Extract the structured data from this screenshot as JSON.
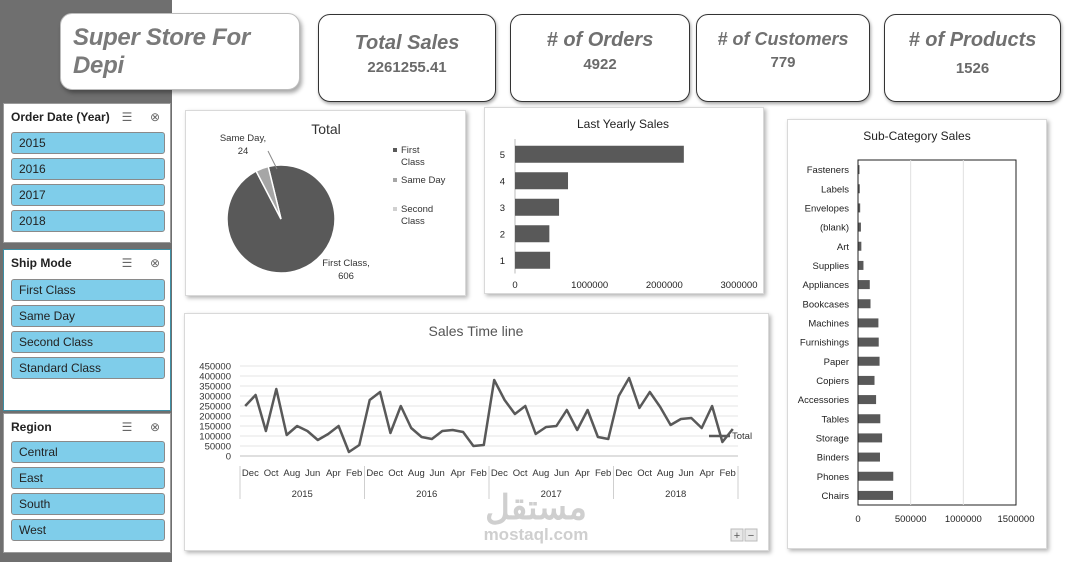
{
  "header": {
    "title": "Super Store For Depi"
  },
  "kpis": {
    "total_sales": {
      "label": "Total Sales",
      "value": "2261255.41"
    },
    "orders": {
      "label": "# of Orders",
      "value": "4922"
    },
    "customers": {
      "label": "# of Customers",
      "value": "779"
    },
    "products": {
      "label": "# of Products",
      "value": "1526"
    }
  },
  "slicers": {
    "order_date": {
      "title": "Order Date (Year)",
      "items": [
        "2015",
        "2016",
        "2017",
        "2018"
      ]
    },
    "ship_mode": {
      "title": "Ship Mode",
      "items": [
        "First Class",
        "Same Day",
        "Second Class",
        "Standard Class"
      ]
    },
    "region": {
      "title": "Region",
      "items": [
        "Central",
        "East",
        "South",
        "West"
      ]
    }
  },
  "icons": {
    "multiselect": "multi-select-icon",
    "clear_filter": "clear-filter-icon"
  },
  "colors": {
    "series": "#595959",
    "same_day": "#a6a6a6",
    "slicer_item": "#7fcdea",
    "sidebar": "#6f6f6f"
  },
  "chart_data": [
    {
      "type": "pie",
      "title": "Total",
      "slices": [
        {
          "label": "First Class",
          "value": 606,
          "data_label": "First Class,\n606",
          "legend": "First\nClass"
        },
        {
          "label": "Same Day",
          "value": 24,
          "data_label": "Same Day,\n24",
          "legend": "Same Day"
        },
        {
          "label": "Second Class",
          "value": 0,
          "legend": "Second\nClass"
        }
      ]
    },
    {
      "type": "bar",
      "orientation": "horizontal",
      "title": "Last Yearly Sales",
      "categories": [
        "1",
        "2",
        "3",
        "4",
        "5"
      ],
      "values": [
        470000,
        460000,
        590000,
        710000,
        2261255
      ],
      "xticks": [
        "0",
        "1000000",
        "2000000",
        "3000000"
      ],
      "xlim": [
        0,
        3000000
      ]
    },
    {
      "type": "line",
      "title": "Sales Time line",
      "series": [
        {
          "name": "Total",
          "values": [
            250000,
            305000,
            125000,
            335000,
            105000,
            150000,
            125000,
            80000,
            110000,
            150000,
            20000,
            55000,
            280000,
            320000,
            115000,
            250000,
            140000,
            95000,
            85000,
            125000,
            130000,
            120000,
            50000,
            55000,
            380000,
            280000,
            210000,
            250000,
            110000,
            145000,
            150000,
            230000,
            130000,
            230000,
            95000,
            85000,
            300000,
            390000,
            240000,
            320000,
            245000,
            155000,
            185000,
            190000,
            140000,
            250000,
            70000,
            135000
          ]
        }
      ],
      "yticks": [
        "0",
        "50000",
        "100000",
        "150000",
        "200000",
        "250000",
        "300000",
        "350000",
        "400000",
        "450000"
      ],
      "ylim": [
        0,
        450000
      ],
      "month_labels": [
        "Dec",
        "Oct",
        "Aug",
        "Jun",
        "Apr",
        "Feb"
      ],
      "years": [
        "2015",
        "2016",
        "2017",
        "2018"
      ],
      "zoom_buttons": [
        "+",
        "−"
      ]
    },
    {
      "type": "bar",
      "orientation": "horizontal",
      "title": "Sub-Category Sales",
      "categories": [
        "Fasteners",
        "Labels",
        "Envelopes",
        "(blank)",
        "Art",
        "Supplies",
        "Appliances",
        "Bookcases",
        "Machines",
        "Furnishings",
        "Paper",
        "Copiers",
        "Accessories",
        "Tables",
        "Storage",
        "Binders",
        "Phones",
        "Chairs"
      ],
      "values": [
        3000,
        12000,
        16000,
        23000,
        27000,
        47000,
        107000,
        114000,
        189000,
        192000,
        200000,
        152000,
        167000,
        207000,
        224000,
        204000,
        330000,
        328000
      ],
      "xticks": [
        "0",
        "500000",
        "1000000",
        "1500000"
      ],
      "xlim": [
        0,
        1500000
      ]
    }
  ],
  "watermark": {
    "arabic": "مستقل",
    "latin": "mostaql.com"
  }
}
